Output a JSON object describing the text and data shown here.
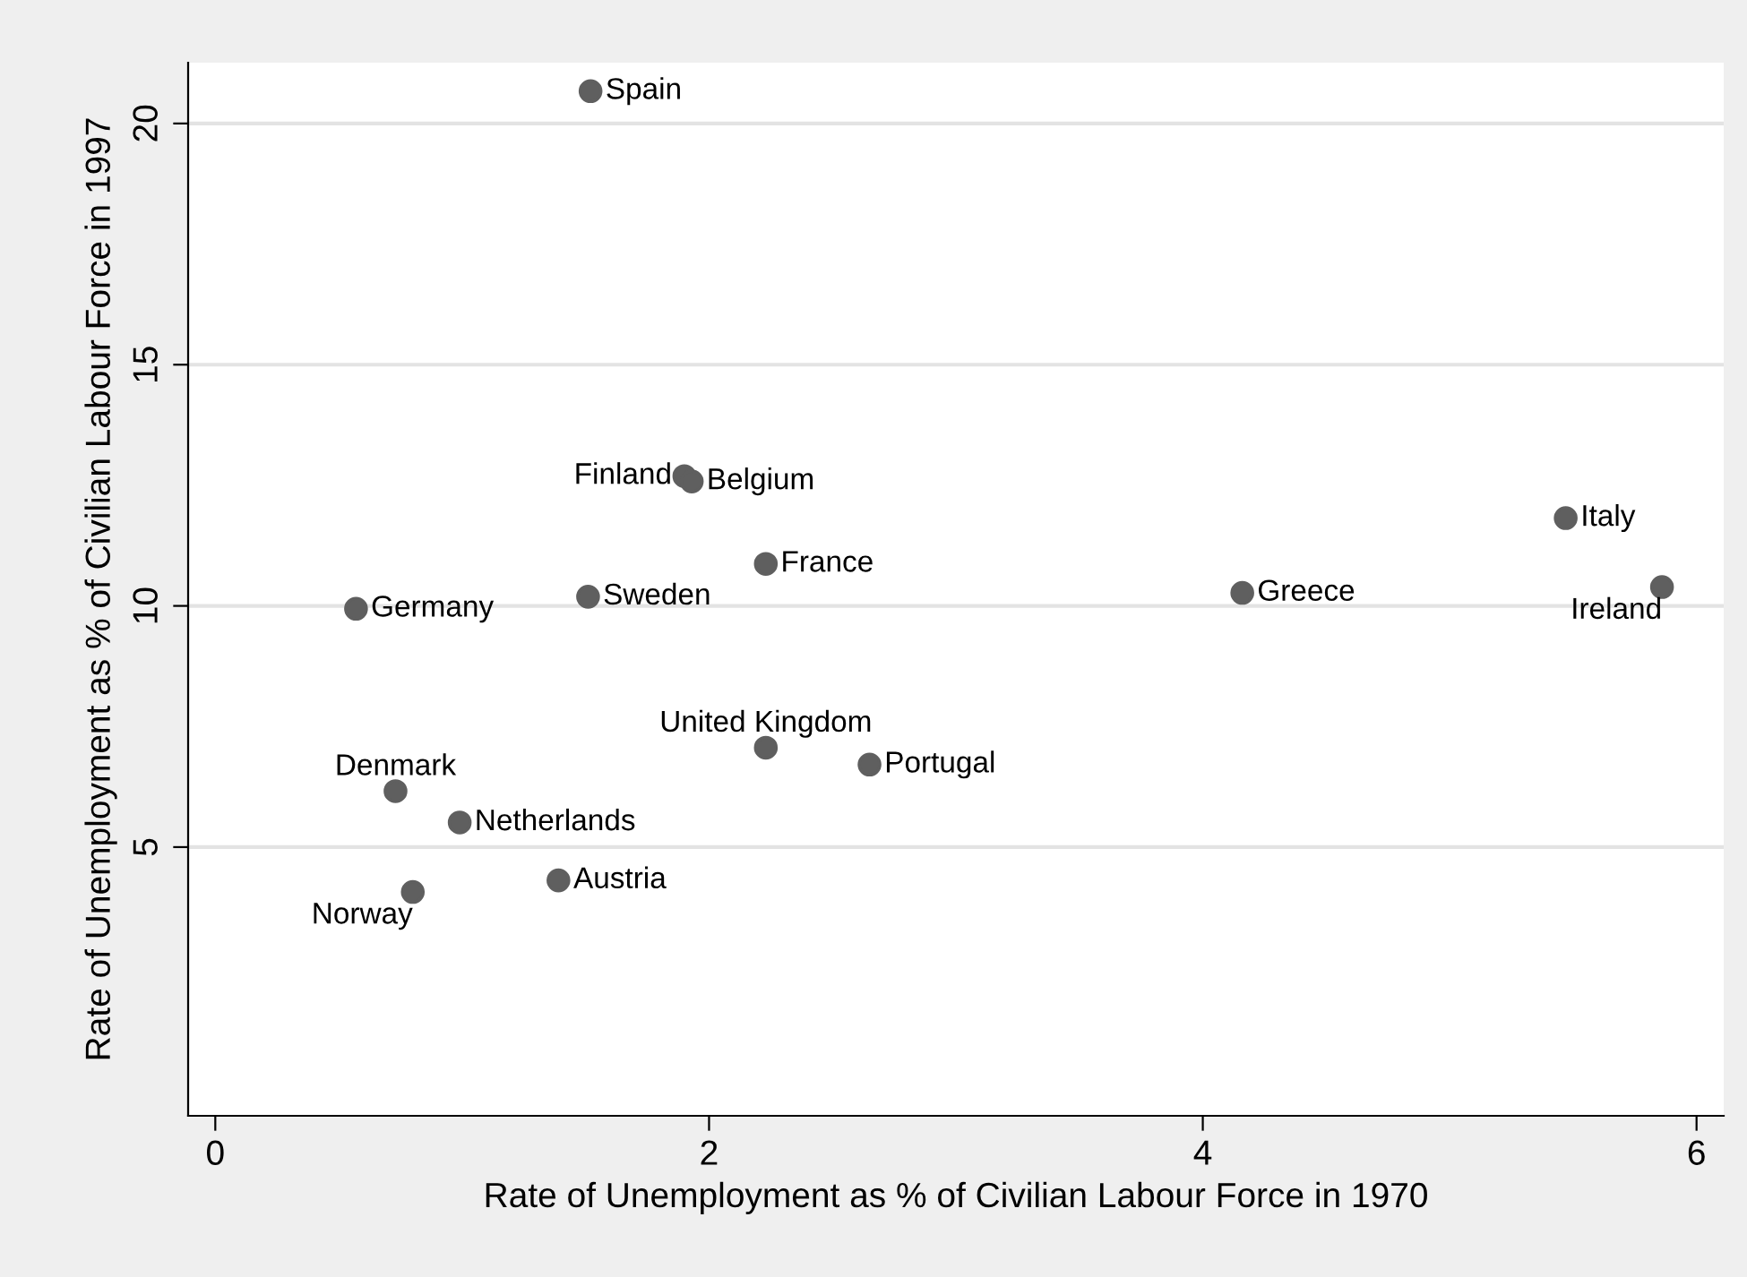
{
  "chart_data": {
    "type": "scatter",
    "xlabel": "Rate of Unemployment as % of Civilian Labour Force in 1970",
    "ylabel": "Rate of Unemployment as % of Civilian Labour Force in 1997",
    "x": [
      1.52,
      1.9,
      1.93,
      2.23,
      1.51,
      0.57,
      4.16,
      5.47,
      5.86,
      2.23,
      2.65,
      0.73,
      0.99,
      1.39,
      0.8
    ],
    "series": [
      {
        "color": "#5f5f5f",
        "values": [
          20.67,
          12.69,
          12.58,
          10.87,
          10.19,
          9.94,
          10.27,
          11.82,
          10.39,
          7.06,
          6.71,
          6.16,
          5.51,
          4.31,
          4.07
        ]
      }
    ],
    "annotations": [
      {
        "text": "Spain",
        "x": 1.52,
        "y": 20.67
      },
      {
        "text": "Finland",
        "x": 1.9,
        "y": 12.69
      },
      {
        "text": "Belgium",
        "x": 1.93,
        "y": 12.58
      },
      {
        "text": "France",
        "x": 2.23,
        "y": 10.87
      },
      {
        "text": "Sweden",
        "x": 1.51,
        "y": 10.19
      },
      {
        "text": "Germany",
        "x": 0.57,
        "y": 9.94
      },
      {
        "text": "Greece",
        "x": 4.16,
        "y": 10.27
      },
      {
        "text": "Italy",
        "x": 5.47,
        "y": 11.82
      },
      {
        "text": "Ireland",
        "x": 5.86,
        "y": 10.39
      },
      {
        "text": "United Kingdom",
        "x": 2.23,
        "y": 7.06
      },
      {
        "text": "Portugal",
        "x": 2.65,
        "y": 6.71
      },
      {
        "text": "Denmark",
        "x": 0.73,
        "y": 6.16
      },
      {
        "text": "Netherlands",
        "x": 0.99,
        "y": 5.51
      },
      {
        "text": "Austria",
        "x": 1.39,
        "y": 4.31
      },
      {
        "text": "Norway",
        "x": 0.8,
        "y": 4.07
      }
    ],
    "xlim": [
      -0.11,
      6.11
    ],
    "ylim": [
      -0.57,
      21.26
    ],
    "xticks": [
      0,
      2,
      4,
      6
    ],
    "yticks": [
      5,
      10,
      15,
      20
    ],
    "grid": "y",
    "marker": "circle"
  }
}
